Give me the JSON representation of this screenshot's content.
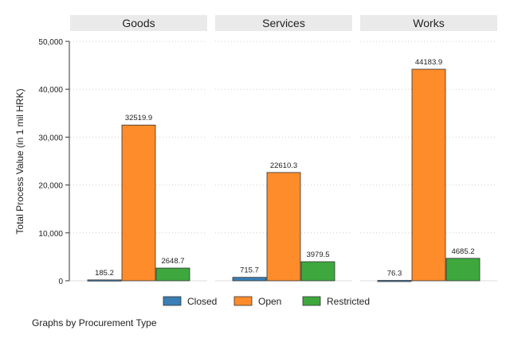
{
  "chart_data": {
    "type": "bar",
    "panels": [
      "Goods",
      "Services",
      "Works"
    ],
    "series": [
      {
        "name": "Closed",
        "color": "#3a7fb5",
        "values": [
          185.2,
          715.7,
          76.3
        ],
        "labels": [
          "185.2",
          "715.7",
          "76.3"
        ]
      },
      {
        "name": "Open",
        "color": "#ff8c2a",
        "values": [
          32519.9,
          22610.3,
          44183.9
        ],
        "labels": [
          "32519.9",
          "22610.3",
          "44183.9"
        ]
      },
      {
        "name": "Restricted",
        "color": "#3ea83e",
        "values": [
          2648.7,
          3979.5,
          4685.2
        ],
        "labels": [
          "2648.7",
          "3979.5",
          "4685.2"
        ]
      }
    ],
    "ylabel": "Total Process Value (in 1 mil HRK)",
    "ylim": [
      0,
      50000
    ],
    "yticks": [
      0,
      10000,
      20000,
      30000,
      40000,
      50000
    ],
    "ytick_labels": [
      "0",
      "10,000",
      "20,000",
      "30,000",
      "40,000",
      "50,000"
    ],
    "grid": true,
    "legend": "bottom",
    "note": "Graphs by Procurement Type"
  }
}
